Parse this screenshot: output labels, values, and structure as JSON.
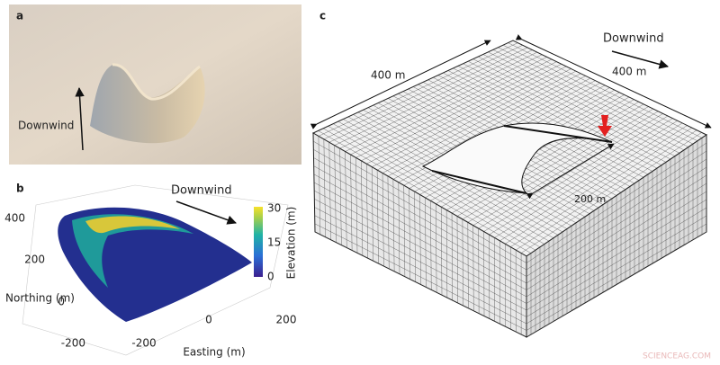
{
  "panel_a": {
    "label": "a",
    "arrow_label": "Downwind"
  },
  "panel_b": {
    "label": "b",
    "arrow_label": "Downwind",
    "colorbar_title": "Elevation (m)",
    "colorbar_ticks": [
      "30",
      "15",
      "0"
    ],
    "y_label": "Northing (m)",
    "y_ticks": [
      "400",
      "200",
      "0",
      "-200"
    ],
    "x_label": "Easting (m)",
    "x_ticks": [
      "-200",
      "0",
      "200"
    ]
  },
  "panel_c": {
    "label": "c",
    "left_dimension": "400 m",
    "right_dimension": "400 m",
    "arrow_label": "Downwind",
    "inner_dimension": "200 m"
  },
  "watermark": "SCIENCEAG.COM"
}
